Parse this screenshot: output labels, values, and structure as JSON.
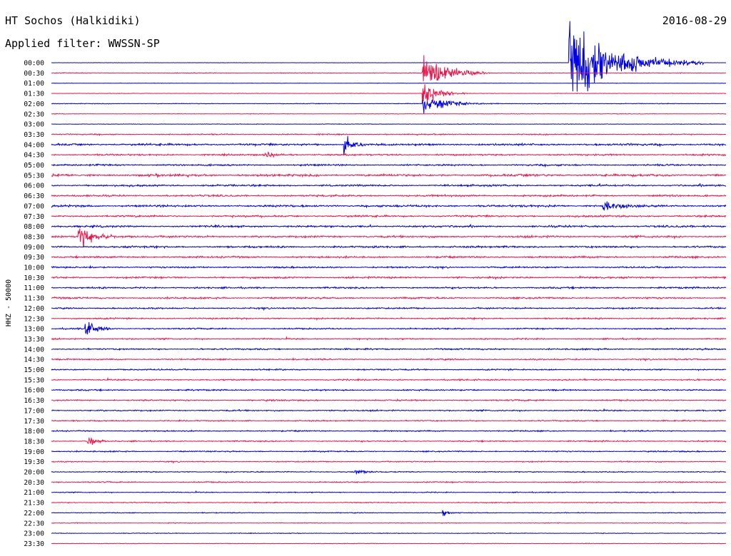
{
  "header": {
    "station": "HT Sochos (Halkidiki)",
    "date": "2016-08-29",
    "filter": "Applied filter: WWSSN-SP"
  },
  "colors": {
    "even_line": "#0000e6",
    "odd_line": "#f0144a"
  },
  "chart_data": {
    "type": "line",
    "title": "HT Sochos (Halkidiki)",
    "ylabel": "HHZ - 50000",
    "xlabel": "",
    "row_labels": [
      "00:00",
      "00:30",
      "01:00",
      "01:30",
      "02:00",
      "02:30",
      "03:00",
      "03:30",
      "04:00",
      "04:30",
      "05:00",
      "05:30",
      "06:00",
      "06:30",
      "07:00",
      "07:30",
      "08:00",
      "08:30",
      "09:00",
      "09:30",
      "10:00",
      "10:30",
      "11:00",
      "11:30",
      "12:00",
      "12:30",
      "13:00",
      "13:30",
      "14:00",
      "14:30",
      "15:00",
      "15:30",
      "16:00",
      "16:30",
      "17:00",
      "17:30",
      "18:00",
      "18:30",
      "19:00",
      "19:30",
      "20:00",
      "20:30",
      "21:00",
      "21:30",
      "22:00",
      "22:30",
      "23:00",
      "23:30"
    ],
    "row_noise_level": [
      0.2,
      0.5,
      0.3,
      0.3,
      0.5,
      0.4,
      0.4,
      0.8,
      1.5,
      1.2,
      1.2,
      1.6,
      1.3,
      1.3,
      1.5,
      1.3,
      1.4,
      1.4,
      1.4,
      1.3,
      1.2,
      1.3,
      1.2,
      1.2,
      1.1,
      1.1,
      1.0,
      1.0,
      1.1,
      1.0,
      1.0,
      1.0,
      1.0,
      1.0,
      1.0,
      0.9,
      0.9,
      0.9,
      0.9,
      0.8,
      0.8,
      0.8,
      0.7,
      0.7,
      0.6,
      0.5,
      0.5,
      0.4
    ],
    "events": [
      {
        "row": 0,
        "minute": 23.0,
        "amplitude": 90,
        "duration_min": 6
      },
      {
        "row": 1,
        "minute": 16.5,
        "amplitude": 45,
        "duration_min": 3
      },
      {
        "row": 3,
        "minute": 16.5,
        "amplitude": 28,
        "duration_min": 2
      },
      {
        "row": 4,
        "minute": 16.5,
        "amplitude": 18,
        "duration_min": 3.5
      },
      {
        "row": 8,
        "minute": 13.0,
        "amplitude": 20,
        "duration_min": 1.5
      },
      {
        "row": 9,
        "minute": 9.5,
        "amplitude": 9,
        "duration_min": 1.5
      },
      {
        "row": 14,
        "minute": 24.5,
        "amplitude": 10,
        "duration_min": 3
      },
      {
        "row": 17,
        "minute": 1.2,
        "amplitude": 22,
        "duration_min": 2.5
      },
      {
        "row": 26,
        "minute": 1.5,
        "amplitude": 22,
        "duration_min": 1.5
      },
      {
        "row": 37,
        "minute": 1.6,
        "amplitude": 9,
        "duration_min": 1.5
      },
      {
        "row": 40,
        "minute": 13.5,
        "amplitude": 6,
        "duration_min": 1.5
      },
      {
        "row": 44,
        "minute": 17.4,
        "amplitude": 6,
        "duration_min": 1
      }
    ]
  }
}
